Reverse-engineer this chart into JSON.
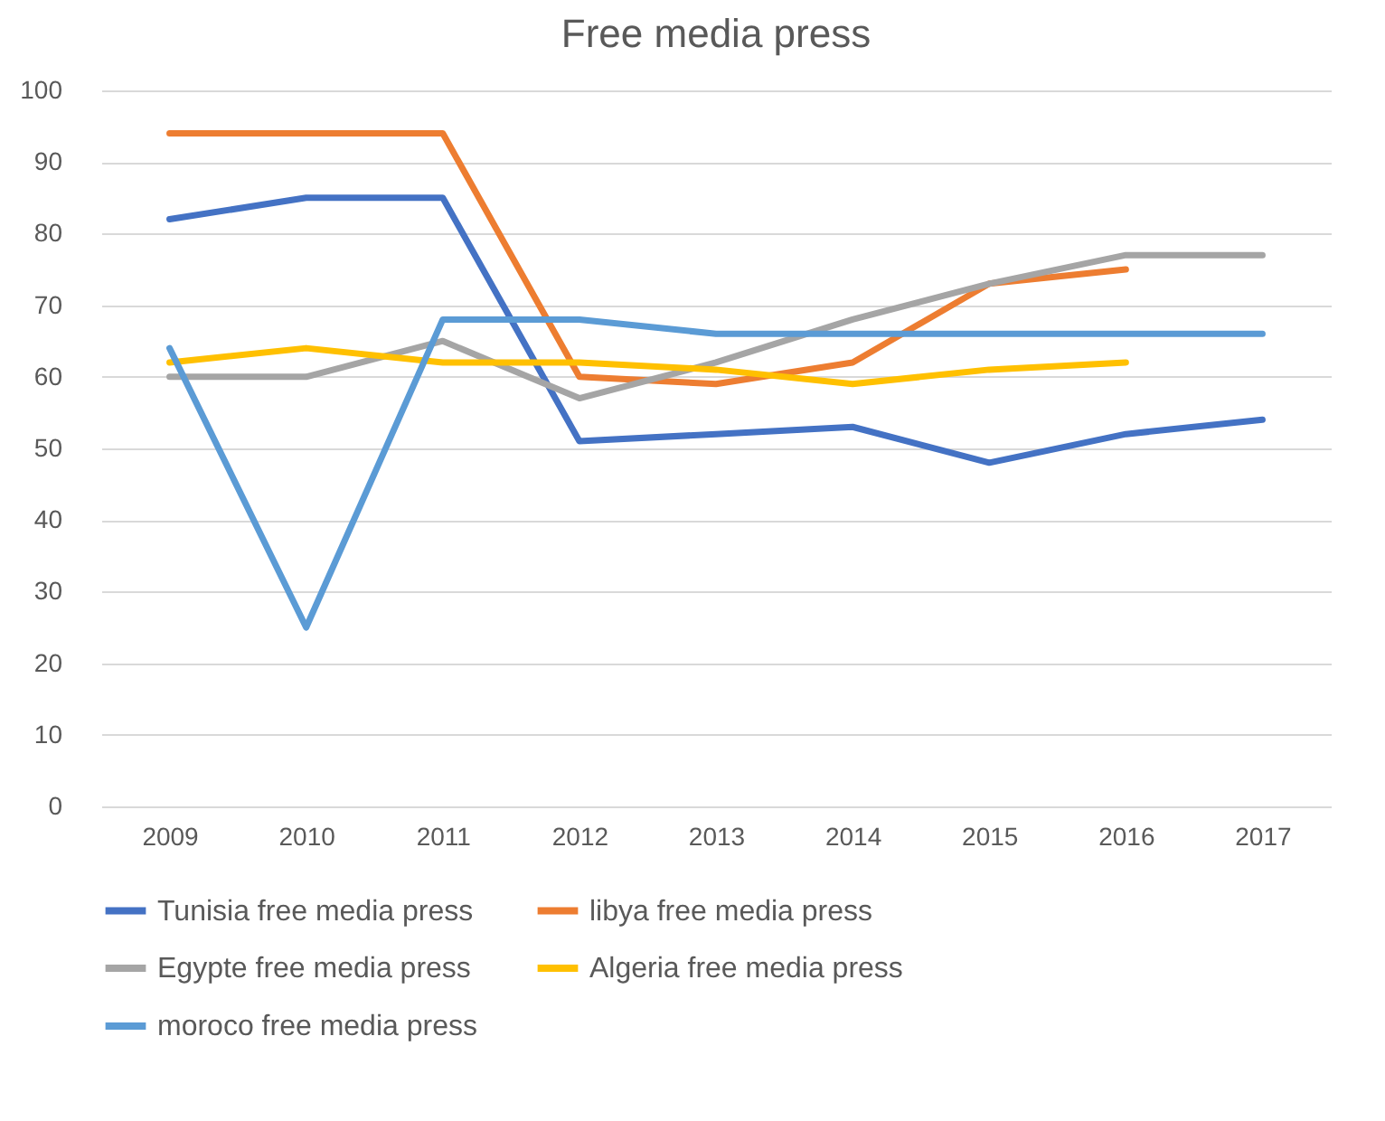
{
  "chart_data": {
    "type": "line",
    "title": "Free media press",
    "categories": [
      "2009",
      "2010",
      "2011",
      "2012",
      "2013",
      "2014",
      "2015",
      "2016",
      "2017"
    ],
    "series": [
      {
        "name": "Tunisia free media press",
        "color": "#4472c4",
        "values": [
          82,
          85,
          85,
          51,
          52,
          53,
          48,
          52,
          54
        ]
      },
      {
        "name": "libya  free media press",
        "color": "#ed7d31",
        "values": [
          94,
          94,
          94,
          60,
          59,
          62,
          73,
          75,
          null
        ]
      },
      {
        "name": "Egypte free media press",
        "color": "#a5a5a5",
        "values": [
          60,
          60,
          65,
          57,
          62,
          68,
          73,
          77,
          77
        ]
      },
      {
        "name": "Algeria  free media press",
        "color": "#ffc000",
        "values": [
          62,
          64,
          62,
          62,
          61,
          59,
          61,
          62,
          null
        ]
      },
      {
        "name": "moroco  free media press",
        "color": "#5b9bd5",
        "values": [
          64,
          25,
          68,
          68,
          66,
          66,
          66,
          66,
          66
        ]
      }
    ],
    "ylim": [
      0,
      100
    ],
    "yticks": [
      0,
      10,
      20,
      30,
      40,
      50,
      60,
      70,
      80,
      90,
      100
    ],
    "grid": "y",
    "legend": "bottom",
    "marker": "none",
    "line_style": "solid"
  }
}
